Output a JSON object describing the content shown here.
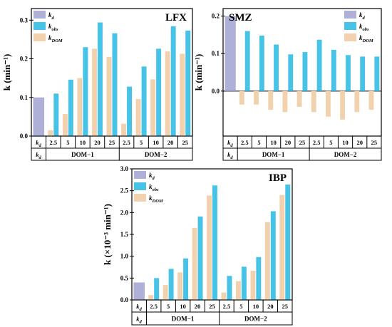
{
  "colors": {
    "kd": "#aeb0d8",
    "kobs": "#46c3e6",
    "kdom": "#f2d1ae"
  },
  "chart_data": [
    {
      "type": "bar",
      "title": "LFX",
      "ylabel": "k (min⁻¹)",
      "ylim": [
        0,
        0.33
      ],
      "yticks": [
        "0.0",
        "0.1",
        "0.2",
        "0.3"
      ],
      "ytick_values": [
        0,
        0.1,
        0.2,
        0.3
      ],
      "legend": {
        "placement": "top-left",
        "entries": [
          {
            "base": "k",
            "sub": "d"
          },
          {
            "base": "k",
            "sub": "obs"
          },
          {
            "base": "k",
            "sub": "DOM"
          }
        ]
      },
      "categories": [
        "kd",
        "2.5",
        "5",
        "10",
        "20",
        "25",
        "2.5",
        "5",
        "10",
        "20",
        "25"
      ],
      "kd_label": {
        "base": "k",
        "sub": "d"
      },
      "groups": [
        "DOM−1",
        "DOM−2"
      ],
      "kd": 0.1,
      "kobs": [
        [
          0.11,
          0.146,
          0.23,
          0.294,
          0.266
        ],
        [
          0.128,
          0.18,
          0.226,
          0.284,
          0.273
        ]
      ],
      "kdom": [
        [
          0.015,
          0.057,
          0.15,
          0.226,
          0.205
        ],
        [
          0.032,
          0.096,
          0.147,
          0.219,
          0.213
        ]
      ]
    },
    {
      "type": "bar",
      "title": "SMZ",
      "ylabel": "k (min⁻¹)",
      "ylim": [
        -0.12,
        0.22
      ],
      "yticks": [
        "0.0",
        "0.1",
        "0.2"
      ],
      "ytick_values": [
        0,
        0.1,
        0.2
      ],
      "legend": {
        "placement": "top-right",
        "entries": [
          {
            "base": "k",
            "sub": "d"
          },
          {
            "base": "k",
            "sub": "obs"
          },
          {
            "base": "k",
            "sub": "DOM"
          }
        ]
      },
      "categories": [
        "kd",
        "2.5",
        "5",
        "10",
        "20",
        "25",
        "2.5",
        "5",
        "10",
        "20",
        "25"
      ],
      "kd_label": {
        "base": "k",
        "sub": "d"
      },
      "groups": [
        "DOM−1",
        "DOM−2"
      ],
      "kd": 0.2,
      "kobs": [
        [
          0.16,
          0.148,
          0.124,
          0.098,
          0.104
        ],
        [
          0.137,
          0.11,
          0.096,
          0.092,
          0.092
        ]
      ],
      "kdom": [
        [
          -0.036,
          -0.036,
          -0.05,
          -0.056,
          -0.042
        ],
        [
          -0.056,
          -0.068,
          -0.076,
          -0.056,
          -0.05
        ]
      ]
    },
    {
      "type": "bar",
      "title": "IBP",
      "ylabel": "k (×10⁻³ min⁻¹)",
      "ylim": [
        0,
        3.0
      ],
      "yticks": [
        "0.0",
        "0.5",
        "1.0",
        "1.5",
        "2.0",
        "2.5",
        "3.0"
      ],
      "ytick_values": [
        0,
        0.5,
        1.0,
        1.5,
        2.0,
        2.5,
        3.0
      ],
      "legend": {
        "placement": "top-left",
        "entries": [
          {
            "base": "k",
            "sub": "d"
          },
          {
            "base": "k",
            "sub": "obs"
          },
          {
            "base": "k",
            "sub": "DOM"
          }
        ]
      },
      "categories": [
        "kd",
        "2.5",
        "5",
        "10",
        "20",
        "25",
        "2.5",
        "5",
        "10",
        "20",
        "25"
      ],
      "kd_label": {
        "base": "k",
        "sub": "d"
      },
      "groups": [
        "DOM−1",
        "DOM−2"
      ],
      "kd": 0.4,
      "kobs": [
        [
          0.5,
          0.71,
          0.95,
          1.91,
          2.62
        ],
        [
          0.55,
          0.76,
          0.98,
          2.03,
          2.64
        ]
      ],
      "kdom": [
        [
          0.11,
          0.34,
          0.63,
          1.65,
          2.39
        ],
        [
          0.17,
          0.43,
          0.67,
          1.78,
          2.4
        ]
      ]
    }
  ]
}
